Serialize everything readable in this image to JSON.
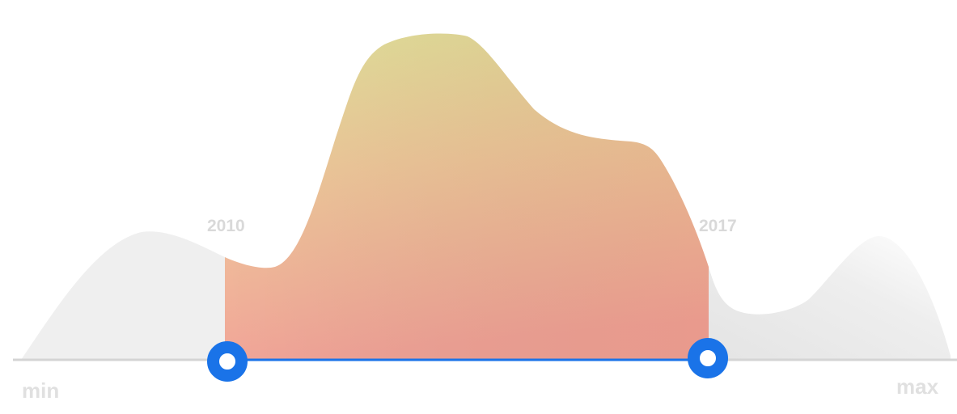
{
  "range_slider": {
    "min_label": "min",
    "max_label": "max",
    "selected_start_label": "2010",
    "selected_end_label": "2017"
  },
  "colors": {
    "accent": "#1a73e8",
    "baseline": "#d4d4d4",
    "unselected_area": "#efefef",
    "selected_gradient_top": "#e3e29b",
    "selected_gradient_bottom": "#f1a498",
    "label_text": "#d9d9d9"
  }
}
